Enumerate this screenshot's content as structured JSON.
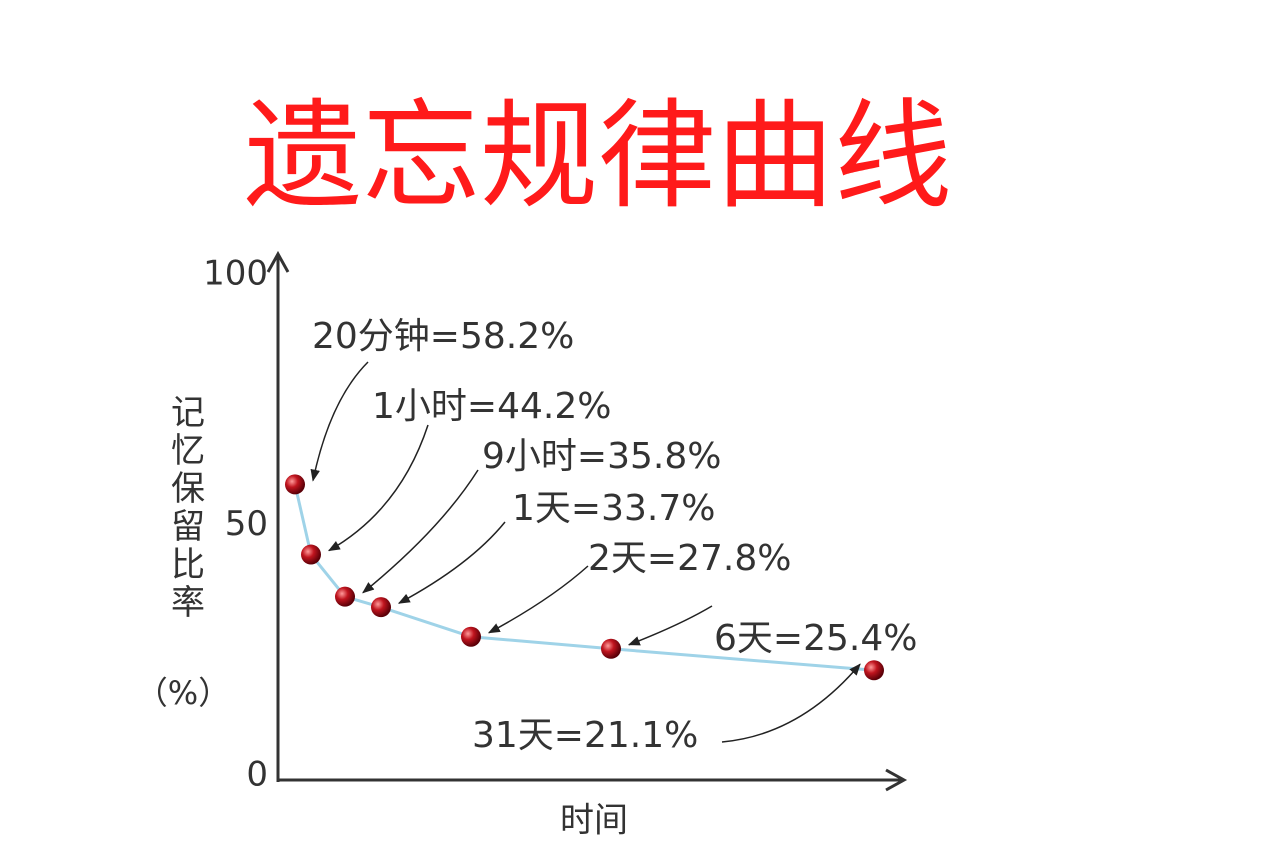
{
  "chart_data": {
    "type": "line",
    "title": "遗忘规律曲线",
    "y_label": "记忆保留比率",
    "y_unit": "（%）",
    "x_label": "时间",
    "values": [
      58.2,
      44.2,
      35.8,
      33.7,
      27.8,
      25.4,
      21.1
    ],
    "value_labels": [
      "20分钟=58.2%",
      "1小时=44.2%",
      "9小时=35.8%",
      "1天=33.7%",
      "2天=27.8%",
      "6天=25.4%",
      "31天=21.1%"
    ],
    "color": "#9fd3e8",
    "marker_color": "#c0141e",
    "ylim": [
      0,
      100
    ],
    "yticks": [
      0,
      50,
      100
    ],
    "grid": false
  }
}
